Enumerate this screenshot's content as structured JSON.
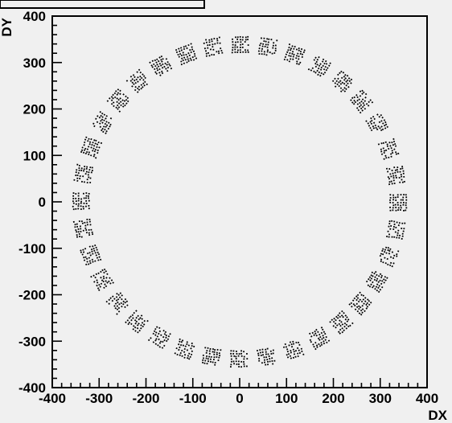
{
  "chart_data": {
    "type": "scatter",
    "title": "",
    "xlabel": "DX",
    "ylabel": "DY",
    "xlim": [
      -400,
      400
    ],
    "ylim": [
      -400,
      400
    ],
    "x_ticks": [
      -400,
      -300,
      -200,
      -100,
      0,
      100,
      200,
      300,
      400
    ],
    "y_ticks": [
      -400,
      -300,
      -200,
      -100,
      0,
      100,
      200,
      300,
      400
    ],
    "x_tick_labels": [
      "-400",
      "-300",
      "-200",
      "-100",
      "0",
      "100",
      "200",
      "300",
      "400"
    ],
    "y_tick_labels": [
      "-400",
      "-300",
      "-200",
      "-100",
      "0",
      "100",
      "200",
      "300",
      "400"
    ],
    "grid": false,
    "legend": "none",
    "colors": {
      "background": "#f0f0f0",
      "marker": "#000000",
      "axis": "#000000"
    },
    "series": [
      {
        "values_note_key": "clusters",
        "clusters": [
          {
            "x": 0,
            "y": 340
          },
          {
            "x": 59,
            "y": 335
          },
          {
            "x": 116,
            "y": 319
          },
          {
            "x": 170,
            "y": 294
          },
          {
            "x": 219,
            "y": 260
          },
          {
            "x": 260,
            "y": 219
          },
          {
            "x": 294,
            "y": 170
          },
          {
            "x": 319,
            "y": 116
          },
          {
            "x": 335,
            "y": 59
          },
          {
            "x": 340,
            "y": 0
          },
          {
            "x": 335,
            "y": -59
          },
          {
            "x": 319,
            "y": -116
          },
          {
            "x": 294,
            "y": -170
          },
          {
            "x": 260,
            "y": -219
          },
          {
            "x": 219,
            "y": -260
          },
          {
            "x": 170,
            "y": -294
          },
          {
            "x": 116,
            "y": -319
          },
          {
            "x": 59,
            "y": -335
          },
          {
            "x": 0,
            "y": -340
          },
          {
            "x": -59,
            "y": -335
          },
          {
            "x": -116,
            "y": -319
          },
          {
            "x": -170,
            "y": -294
          },
          {
            "x": -219,
            "y": -260
          },
          {
            "x": -260,
            "y": -219
          },
          {
            "x": -294,
            "y": -170
          },
          {
            "x": -319,
            "y": -116
          },
          {
            "x": -335,
            "y": -59
          },
          {
            "x": -340,
            "y": 0
          },
          {
            "x": -335,
            "y": 59
          },
          {
            "x": -319,
            "y": 116
          },
          {
            "x": -294,
            "y": 170
          },
          {
            "x": -260,
            "y": 219
          },
          {
            "x": -219,
            "y": 260
          },
          {
            "x": -170,
            "y": 294
          },
          {
            "x": -116,
            "y": 319
          },
          {
            "x": -59,
            "y": 335
          }
        ]
      }
    ]
  }
}
